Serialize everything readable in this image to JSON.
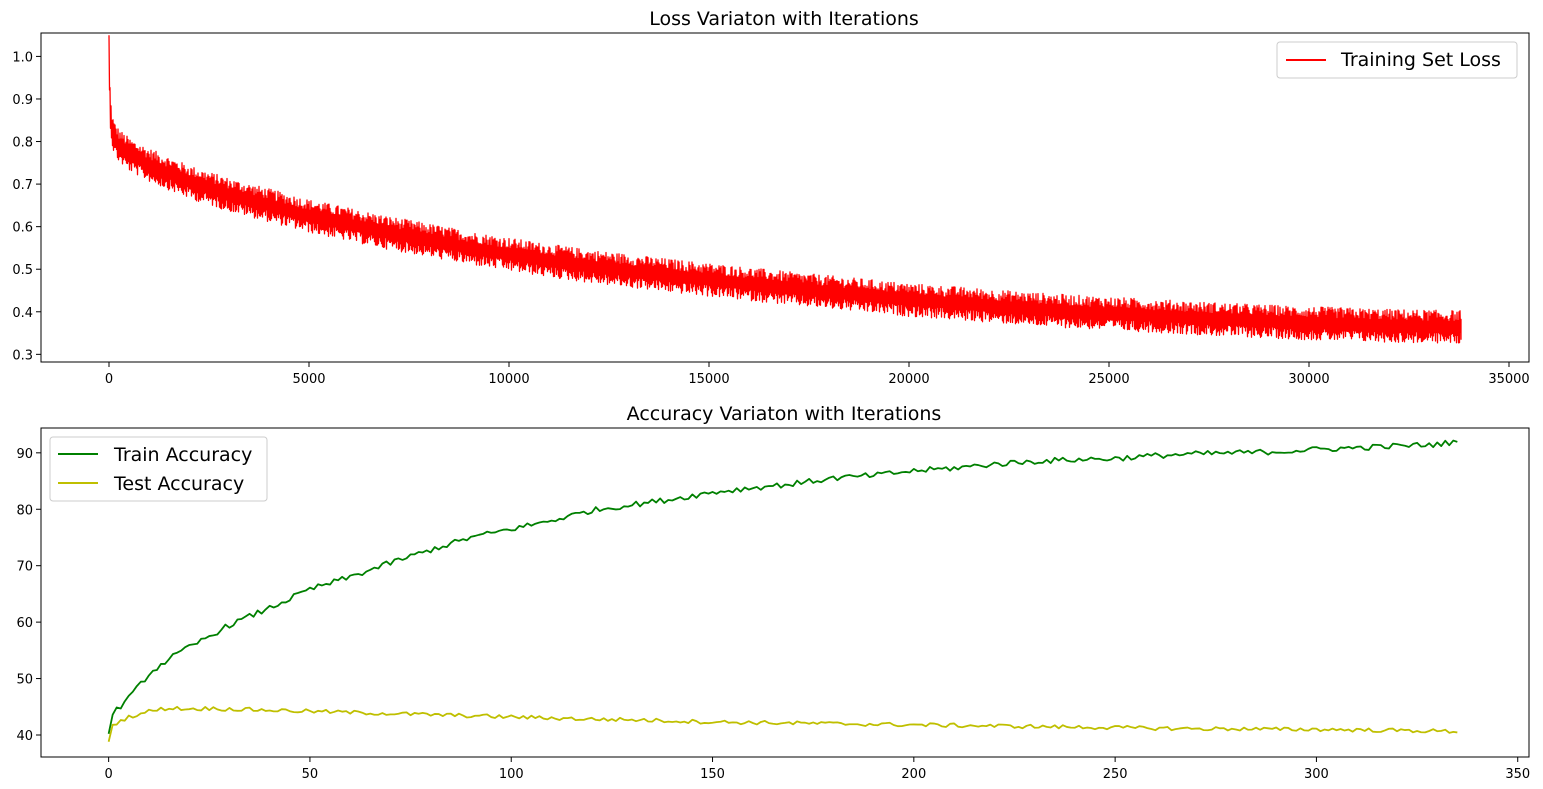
{
  "colors": {
    "loss": "#ff0000",
    "train": "#008000",
    "test": "#bfbf00",
    "axes": "#000000",
    "legend_border": "#cccccc"
  },
  "chart_data": [
    {
      "type": "line",
      "title": "Loss Variaton with Iterations",
      "xlabel": "",
      "ylabel": "",
      "xlim": [
        -1700,
        35500
      ],
      "ylim": [
        0.282,
        1.055
      ],
      "xticks": [
        0,
        5000,
        10000,
        15000,
        20000,
        25000,
        30000,
        35000
      ],
      "xtick_labels": [
        "0",
        "5000",
        "10000",
        "15000",
        "20000",
        "25000",
        "30000",
        "35000"
      ],
      "yticks": [
        0.3,
        0.4,
        0.5,
        0.6,
        0.7,
        0.8,
        0.9,
        1.0
      ],
      "ytick_labels": [
        "0.3",
        "0.4",
        "0.5",
        "0.6",
        "0.7",
        "0.8",
        "0.9",
        "1.0"
      ],
      "grid": false,
      "legend_position": "top-right",
      "series": [
        {
          "name": "Training Set Loss",
          "color": "#ff0000",
          "noise_band": 0.03,
          "x": [
            0,
            10,
            30,
            60,
            120,
            250,
            500,
            1000,
            2000,
            3000,
            4000,
            5000,
            6000,
            7000,
            8000,
            9000,
            10000,
            11000,
            12000,
            13000,
            14000,
            15000,
            16000,
            17000,
            18000,
            19000,
            20000,
            21000,
            22000,
            23000,
            24000,
            25000,
            26000,
            27000,
            28000,
            29000,
            30000,
            31000,
            32000,
            33000,
            33800
          ],
          "y": [
            1.02,
            0.95,
            0.88,
            0.84,
            0.81,
            0.79,
            0.77,
            0.745,
            0.705,
            0.675,
            0.65,
            0.625,
            0.605,
            0.585,
            0.568,
            0.55,
            0.535,
            0.52,
            0.507,
            0.496,
            0.485,
            0.475,
            0.465,
            0.455,
            0.446,
            0.437,
            0.428,
            0.421,
            0.414,
            0.407,
            0.401,
            0.396,
            0.391,
            0.386,
            0.381,
            0.377,
            0.373,
            0.37,
            0.367,
            0.365,
            0.364
          ]
        }
      ]
    },
    {
      "type": "line",
      "title": "Accuracy Variaton with Iterations",
      "xlabel": "",
      "ylabel": "",
      "xlim": [
        -16.8,
        352.8
      ],
      "ylim": [
        36.1,
        94.4
      ],
      "xticks": [
        0,
        50,
        100,
        150,
        200,
        250,
        300,
        350
      ],
      "xtick_labels": [
        "0",
        "50",
        "100",
        "150",
        "200",
        "250",
        "300",
        "350"
      ],
      "yticks": [
        40,
        50,
        60,
        70,
        80,
        90
      ],
      "ytick_labels": [
        "40",
        "50",
        "60",
        "70",
        "80",
        "90"
      ],
      "grid": false,
      "legend_position": "top-left",
      "series": [
        {
          "name": "Train Accuracy",
          "color": "#008000",
          "x": [
            0,
            1,
            2,
            5,
            10,
            15,
            20,
            25,
            30,
            40,
            50,
            60,
            70,
            80,
            90,
            100,
            110,
            120,
            130,
            140,
            150,
            160,
            170,
            180,
            190,
            200,
            210,
            220,
            230,
            240,
            250,
            260,
            270,
            280,
            290,
            300,
            310,
            320,
            330,
            335
          ],
          "y": [
            40.2,
            43.5,
            44.5,
            46.5,
            50.8,
            53.5,
            55.5,
            57.5,
            59.5,
            62.5,
            65.8,
            68.0,
            70.5,
            72.8,
            75.0,
            76.5,
            78.0,
            79.8,
            80.8,
            81.8,
            83.0,
            83.8,
            84.5,
            85.5,
            86.0,
            86.8,
            87.3,
            88.0,
            88.5,
            88.8,
            89.0,
            89.5,
            89.8,
            90.0,
            90.2,
            90.6,
            90.9,
            91.2,
            91.5,
            92.0
          ]
        },
        {
          "name": "Test Accuracy",
          "color": "#bfbf00",
          "x": [
            0,
            1,
            2,
            5,
            10,
            15,
            20,
            25,
            30,
            40,
            50,
            60,
            70,
            80,
            90,
            100,
            110,
            120,
            130,
            140,
            150,
            160,
            170,
            180,
            190,
            200,
            210,
            220,
            230,
            240,
            250,
            260,
            270,
            280,
            290,
            300,
            310,
            320,
            330,
            335
          ],
          "y": [
            38.8,
            41.5,
            42.2,
            43.2,
            44.2,
            44.8,
            44.6,
            44.7,
            44.6,
            44.4,
            44.2,
            44.0,
            43.8,
            43.6,
            43.4,
            43.2,
            43.0,
            42.8,
            42.7,
            42.5,
            42.3,
            42.2,
            42.1,
            42.0,
            41.9,
            41.8,
            41.7,
            41.6,
            41.5,
            41.4,
            41.3,
            41.2,
            41.1,
            41.1,
            41.0,
            41.0,
            40.9,
            40.8,
            40.7,
            40.6
          ]
        }
      ]
    }
  ]
}
